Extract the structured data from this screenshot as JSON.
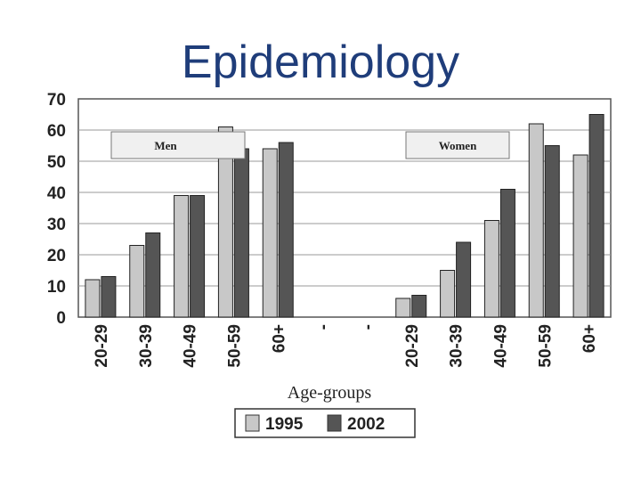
{
  "slide": {
    "title": "Epidemiology"
  },
  "colors": {
    "series_1995": "#c8c8c8",
    "series_2002": "#555555",
    "title": "#1f3d7a"
  },
  "chart_data": {
    "type": "bar",
    "title": "",
    "xlabel": "Age-groups",
    "ylabel": "",
    "ylim": [
      0,
      70
    ],
    "yticks": [
      0,
      10,
      20,
      30,
      40,
      50,
      60,
      70
    ],
    "grid": true,
    "legend": "bottom",
    "categories": [
      "20-29",
      "30-39",
      "40-49",
      "50-59",
      "60+",
      "-",
      "-",
      "20-29",
      "30-39",
      "40-49",
      "50-59",
      "60+"
    ],
    "group_labels": [
      {
        "label": "Men",
        "spans": [
          "20-29",
          "60+"
        ]
      },
      {
        "label": "Women",
        "spans": [
          "20-29",
          "60+"
        ]
      }
    ],
    "series": [
      {
        "name": "1995",
        "values": [
          12,
          23,
          39,
          61,
          54,
          null,
          null,
          6,
          15,
          31,
          62,
          52
        ]
      },
      {
        "name": "2002",
        "values": [
          13,
          27,
          39,
          54,
          56,
          null,
          null,
          7,
          24,
          41,
          55,
          65
        ]
      }
    ]
  }
}
